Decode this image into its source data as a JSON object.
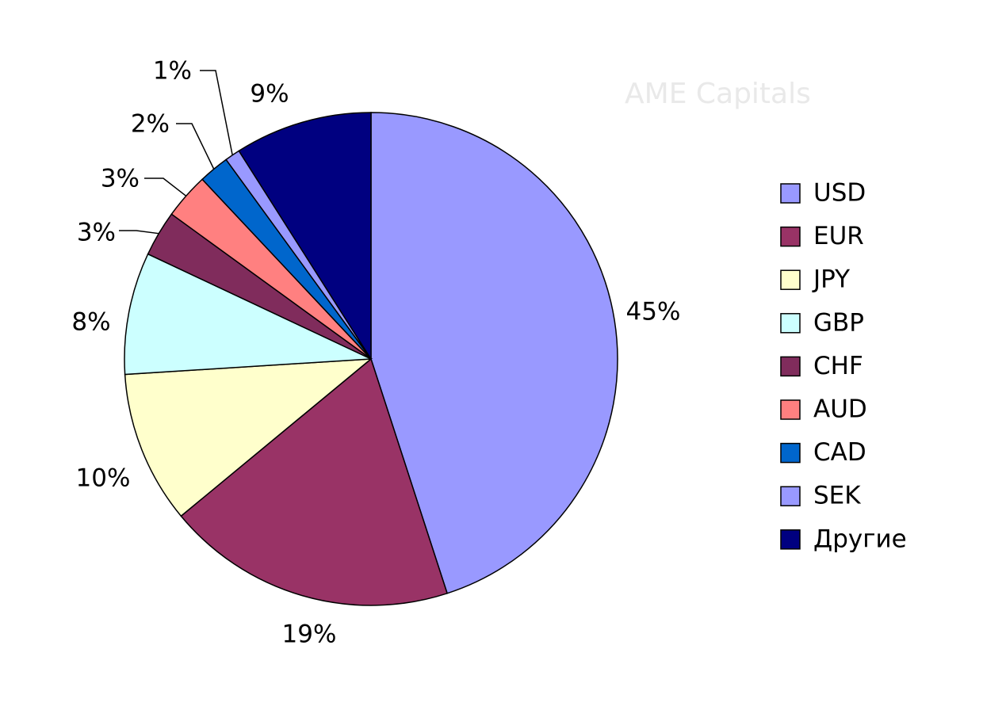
{
  "chart_data": {
    "type": "pie",
    "watermark": "AME Capitals",
    "categories": [
      "USD",
      "EUR",
      "JPY",
      "GBP",
      "CHF",
      "AUD",
      "CAD",
      "SEK",
      "Другие"
    ],
    "values": [
      45,
      19,
      10,
      8,
      3,
      3,
      2,
      1,
      9
    ],
    "value_labels": [
      "45%",
      "19%",
      "10%",
      "8%",
      "3%",
      "3%",
      "2%",
      "1%",
      "9%"
    ],
    "colors": [
      "#9999ff",
      "#993366",
      "#ffffcc",
      "#ccffff",
      "#802c5c",
      "#ff8080",
      "#0066cc",
      "#9999ff",
      "#000080"
    ],
    "legend": "right"
  }
}
